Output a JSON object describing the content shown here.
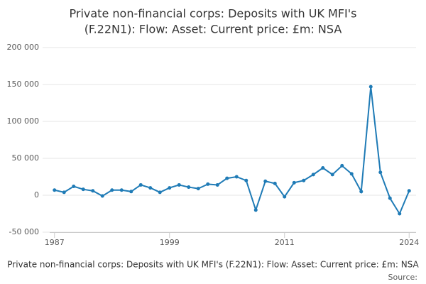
{
  "chart_data": {
    "type": "line",
    "title": [
      "Private non-financial corps: Deposits with UK MFI's",
      "(F.22N1): Flow: Asset: Current price: £m: NSA"
    ],
    "x_label": "Private non-financial corps: Deposits with UK MFI's (F.22N1): Flow: Asset: Current price: £m: NSA",
    "source": "Source:",
    "x": [
      1987,
      1988,
      1989,
      1990,
      1991,
      1992,
      1993,
      1994,
      1995,
      1996,
      1997,
      1998,
      1999,
      2000,
      2001,
      2002,
      2003,
      2004,
      2005,
      2006,
      2007,
      2008,
      2009,
      2010,
      2011,
      2012,
      2013,
      2014,
      2015,
      2016,
      2017,
      2018,
      2019,
      2020,
      2021,
      2022,
      2023,
      2024
    ],
    "series": [
      {
        "name": "Private non-financial corps: Deposits with UK MFI's (F.22N1): Flow: Asset: Current price: £m: NSA",
        "color": "#1f7bb6",
        "values": [
          7000,
          4000,
          12000,
          8000,
          6000,
          -1000,
          7000,
          7000,
          5000,
          14000,
          10000,
          4000,
          10000,
          14000,
          11000,
          9000,
          15000,
          14000,
          23000,
          25000,
          20000,
          -20000,
          19000,
          16000,
          -2000,
          17000,
          20000,
          28000,
          37000,
          28000,
          40000,
          29000,
          5000,
          147000,
          31000,
          -4000,
          -25000,
          6000
        ]
      }
    ],
    "xlim": [
      1986.5,
      2024.7
    ],
    "xticks": [
      1987,
      1999,
      2011,
      2024
    ],
    "ylim": [
      -50000,
      200000
    ],
    "yticks": [
      {
        "value": -50000,
        "label": "-50 000"
      },
      0,
      {
        "value": 50000,
        "label": "50 000"
      },
      {
        "value": 100000,
        "label": "100 000"
      },
      {
        "value": 150000,
        "label": "150 000"
      },
      {
        "value": 200000,
        "label": "200 000"
      }
    ],
    "grid": true
  }
}
